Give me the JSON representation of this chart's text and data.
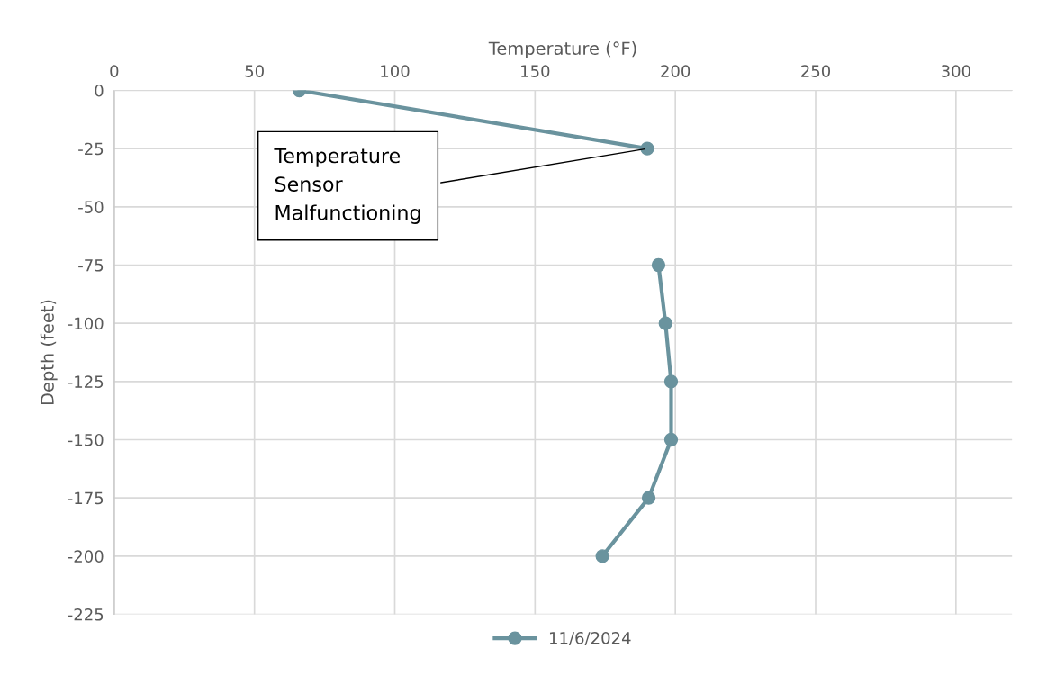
{
  "chart_data": {
    "type": "line",
    "xlabel": "Temperature (°F)",
    "ylabel": "Depth (feet)",
    "xlim": [
      0,
      320
    ],
    "xticks": [
      0,
      50,
      100,
      150,
      200,
      250,
      300
    ],
    "ylim": [
      -225,
      0
    ],
    "yticks": [
      -225,
      -200,
      -175,
      -150,
      -125,
      -100,
      -75,
      -50,
      -25,
      0
    ],
    "grid": true,
    "legend": "bottom",
    "marker": "circle",
    "line_style": "solid",
    "series": [
      {
        "name": "11/6/2024",
        "color": "#6a939e",
        "x": [
          66,
          190,
          null,
          194,
          196.5,
          198.5,
          198.5,
          190.5,
          174
        ],
        "values": [
          0,
          -25,
          null,
          -75,
          -100,
          -125,
          -150,
          -175,
          -200
        ]
      }
    ],
    "annotations": [
      {
        "text": "Temperature\nSensor\nMalfunctioning",
        "x": 190,
        "y": -25
      }
    ]
  }
}
